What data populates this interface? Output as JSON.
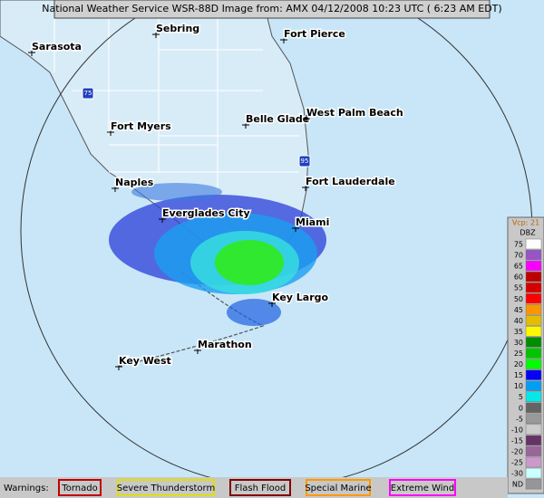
{
  "header": {
    "title": "National Weather Service WSR-88D Image from:  AMX 04/12/2008 10:23 UTC ( 6:23 AM EDT)"
  },
  "cities": [
    {
      "label": "Sarasota"
    },
    {
      "label": "Sebring"
    },
    {
      "label": "Fort Pierce"
    },
    {
      "label": "Belle Glade"
    },
    {
      "label": "West Palm Beach"
    },
    {
      "label": "Fort Myers"
    },
    {
      "label": "Naples"
    },
    {
      "label": "Fort Lauderdale"
    },
    {
      "label": "Everglades City"
    },
    {
      "label": "Miami"
    },
    {
      "label": "Key Largo"
    },
    {
      "label": "Marathon"
    },
    {
      "label": "Key West"
    }
  ],
  "highways": [
    "75",
    "95"
  ],
  "legend": {
    "vcp": "Vcp: 21",
    "unit": "DBZ",
    "entries": [
      {
        "label": 75,
        "color": "#fdfdfd"
      },
      {
        "label": 70,
        "color": "#9854c6"
      },
      {
        "label": 65,
        "color": "#f800fd"
      },
      {
        "label": 60,
        "color": "#bc0000"
      },
      {
        "label": 55,
        "color": "#d40000"
      },
      {
        "label": 50,
        "color": "#fd0000"
      },
      {
        "label": 45,
        "color": "#fd9500"
      },
      {
        "label": 40,
        "color": "#e5bc00"
      },
      {
        "label": 35,
        "color": "#fdf802"
      },
      {
        "label": 30,
        "color": "#008e00"
      },
      {
        "label": 25,
        "color": "#01c501"
      },
      {
        "label": 20,
        "color": "#02fd02"
      },
      {
        "label": 15,
        "color": "#0300f4"
      },
      {
        "label": 10,
        "color": "#019ff4"
      },
      {
        "label": 5,
        "color": "#04e9e7"
      },
      {
        "label": 0,
        "color": "#646464"
      },
      {
        "label": -5,
        "color": "#999999"
      },
      {
        "label": -10,
        "color": "#cccccc"
      },
      {
        "label": -15,
        "color": "#663366"
      },
      {
        "label": -20,
        "color": "#996699"
      },
      {
        "label": -25,
        "color": "#cc99cc"
      },
      {
        "label": -30,
        "color": "#ccffff"
      },
      {
        "label": "ND",
        "color": "#96969a"
      }
    ]
  },
  "warnings": {
    "label": "Warnings:",
    "items": [
      {
        "label": "Tornado",
        "color": "#c00000"
      },
      {
        "label": "Severe Thunderstorm",
        "color": "#e0e000"
      },
      {
        "label": "Flash Flood",
        "color": "#800000"
      },
      {
        "label": "Special Marine",
        "color": "#ff9900"
      },
      {
        "label": "Extreme Wind",
        "color": "#ff00ff"
      }
    ]
  }
}
